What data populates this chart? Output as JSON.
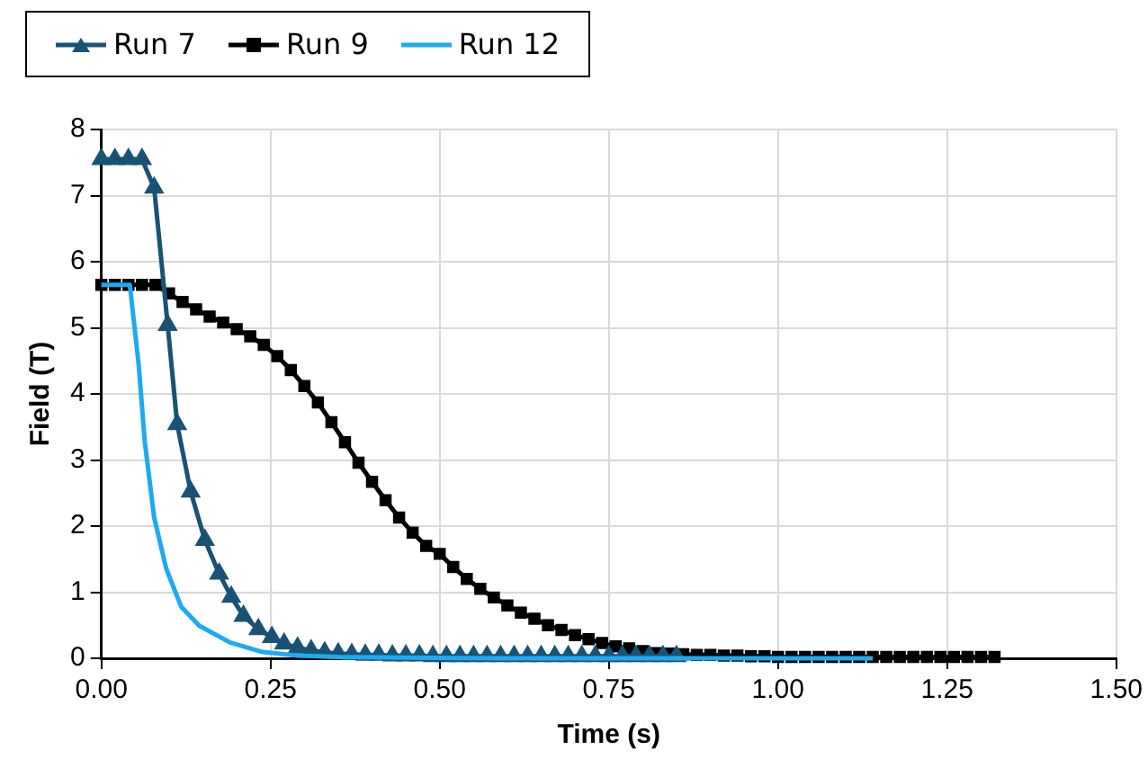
{
  "chart_data": {
    "type": "line",
    "xlabel": "Time (s)",
    "ylabel": "Field (T)",
    "xlim": [
      0,
      1.5
    ],
    "xticks": [
      {
        "value": 0,
        "label": "0.00"
      },
      {
        "value": 0.25,
        "label": "0.25"
      },
      {
        "value": 0.5,
        "label": "0.50"
      },
      {
        "value": 0.75,
        "label": "0.75"
      },
      {
        "value": 1,
        "label": "1.00"
      },
      {
        "value": 1.25,
        "label": "1.25"
      },
      {
        "value": 1.5,
        "label": "1.50"
      }
    ],
    "ylim": [
      0,
      8
    ],
    "yticks": [
      0,
      1,
      2,
      3,
      4,
      5,
      6,
      7,
      8
    ],
    "grid": true,
    "legend": "top left",
    "line_style": "solid",
    "series": [
      {
        "name": "Run 7",
        "color": "#1a5276",
        "marker": "triangle",
        "x": [
          0,
          0.02,
          0.04,
          0.06,
          0.078,
          0.098,
          0.112,
          0.132,
          0.153,
          0.174,
          0.192,
          0.21,
          0.232,
          0.252,
          0.27,
          0.29,
          0.31,
          0.33,
          0.35,
          0.37,
          0.39,
          0.41,
          0.43,
          0.45,
          0.47,
          0.49,
          0.51,
          0.53,
          0.55,
          0.57,
          0.59,
          0.61,
          0.63,
          0.65,
          0.67,
          0.69,
          0.71,
          0.73,
          0.75,
          0.77,
          0.79,
          0.81,
          0.83,
          0.85
        ],
        "values": [
          7.55,
          7.55,
          7.55,
          7.55,
          7.12,
          5.04,
          3.54,
          2.52,
          1.79,
          1.28,
          0.93,
          0.64,
          0.44,
          0.32,
          0.22,
          0.16,
          0.12,
          0.09,
          0.07,
          0.06,
          0.05,
          0.05,
          0.04,
          0.04,
          0.04,
          0.03,
          0.03,
          0.03,
          0.03,
          0.03,
          0.03,
          0.03,
          0.03,
          0.03,
          0.03,
          0.03,
          0.03,
          0.03,
          0.03,
          0.03,
          0.03,
          0.03,
          0.03,
          0.03
        ]
      },
      {
        "name": "Run 9",
        "color": "#000000",
        "marker": "square",
        "x": [
          0,
          0.02,
          0.04,
          0.06,
          0.08,
          0.1,
          0.12,
          0.14,
          0.16,
          0.18,
          0.2,
          0.22,
          0.24,
          0.26,
          0.28,
          0.3,
          0.32,
          0.34,
          0.36,
          0.38,
          0.4,
          0.42,
          0.44,
          0.46,
          0.48,
          0.5,
          0.52,
          0.54,
          0.56,
          0.58,
          0.6,
          0.62,
          0.64,
          0.66,
          0.68,
          0.7,
          0.72,
          0.74,
          0.76,
          0.78,
          0.8,
          0.82,
          0.84,
          0.86,
          0.88,
          0.9,
          0.92,
          0.94,
          0.96,
          0.98,
          1,
          1.02,
          1.04,
          1.06,
          1.08,
          1.1,
          1.12,
          1.14,
          1.16,
          1.18,
          1.2,
          1.22,
          1.24,
          1.26,
          1.28,
          1.3,
          1.32
        ],
        "values": [
          5.65,
          5.65,
          5.65,
          5.65,
          5.65,
          5.52,
          5.39,
          5.28,
          5.17,
          5.08,
          4.98,
          4.87,
          4.74,
          4.57,
          4.36,
          4.12,
          3.87,
          3.57,
          3.27,
          2.96,
          2.67,
          2.39,
          2.13,
          1.9,
          1.7,
          1.58,
          1.38,
          1.2,
          1.05,
          0.92,
          0.8,
          0.69,
          0.6,
          0.5,
          0.43,
          0.35,
          0.29,
          0.23,
          0.18,
          0.15,
          0.11,
          0.08,
          0.07,
          0.06,
          0.05,
          0.05,
          0.04,
          0.04,
          0.03,
          0.03,
          0.02,
          0.02,
          0.02,
          0.02,
          0.02,
          0.02,
          0.02,
          0.02,
          0.02,
          0.02,
          0.02,
          0.02,
          0.02,
          0.02,
          0.02,
          0.02,
          0.02
        ]
      },
      {
        "name": "Run 12",
        "color": "#1eaaf1",
        "marker": "none",
        "x": [
          0,
          0.042,
          0.055,
          0.064,
          0.078,
          0.096,
          0.118,
          0.145,
          0.19,
          0.236,
          0.29,
          0.35,
          0.45,
          0.6,
          0.8,
          1,
          1.14
        ],
        "values": [
          5.65,
          5.65,
          4.46,
          3.29,
          2.13,
          1.35,
          0.78,
          0.49,
          0.24,
          0.1,
          0.04,
          0.02,
          0.01,
          0,
          0,
          0,
          0
        ]
      }
    ]
  }
}
